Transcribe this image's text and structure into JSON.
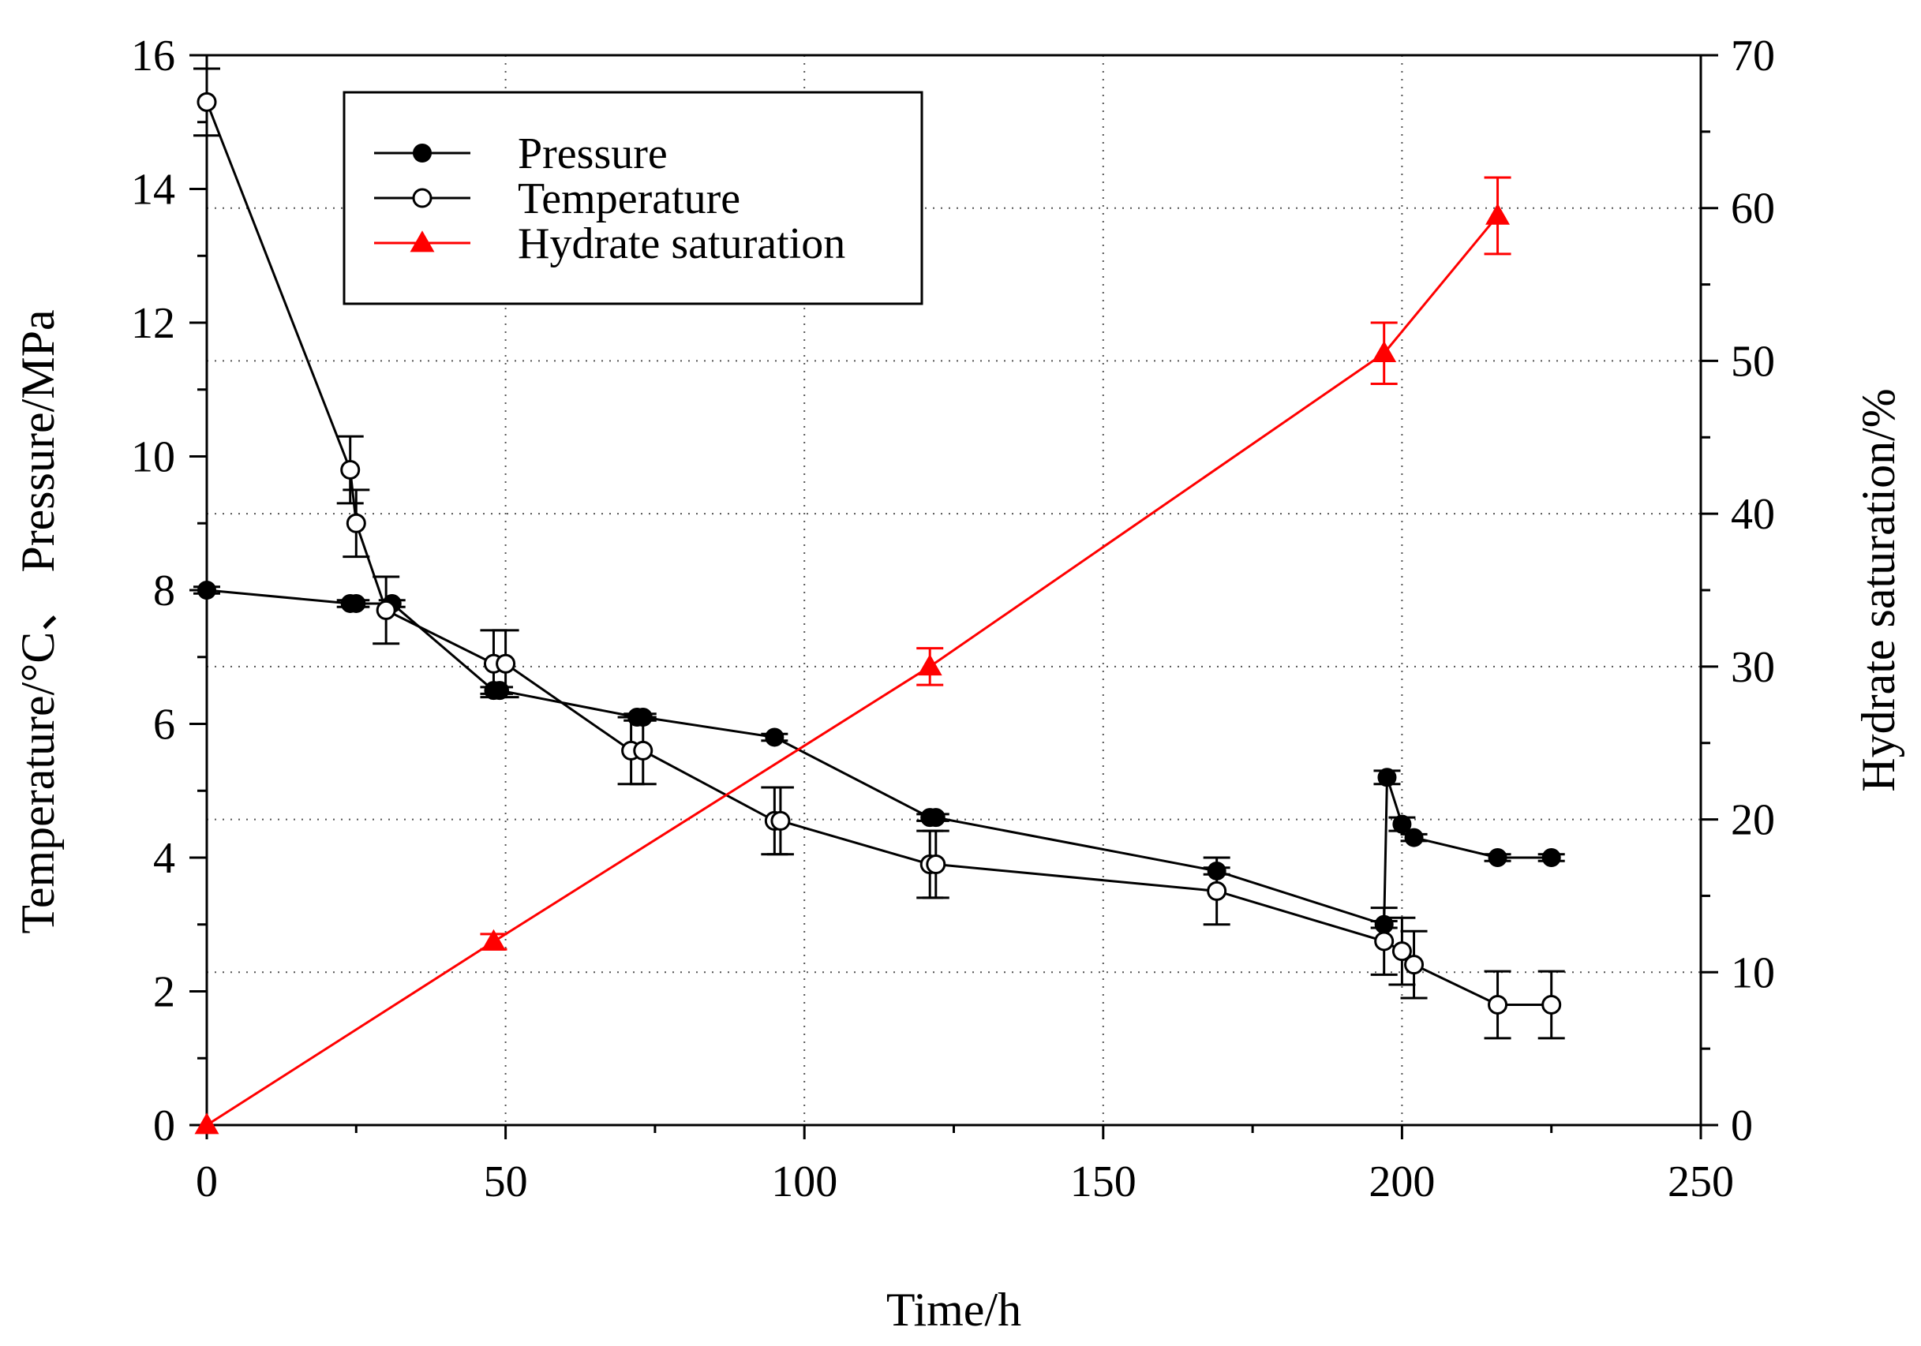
{
  "chart_data": {
    "type": "line",
    "title": "",
    "xlabel": "Time/h",
    "ylabel_left": "Temperature/°C、 Pressure/MPa",
    "ylabel_right": "Hydrate saturation/%",
    "xlim": [
      0,
      250
    ],
    "ylim_left": [
      0,
      16
    ],
    "ylim_right": [
      0,
      70
    ],
    "x_ticks": [
      0,
      50,
      100,
      150,
      200,
      250
    ],
    "y_left_ticks": [
      0,
      2,
      4,
      6,
      8,
      10,
      12,
      14,
      16
    ],
    "y_right_ticks": [
      0,
      10,
      20,
      30,
      40,
      50,
      60,
      70
    ],
    "grid": "dotted",
    "legend_position": "top-left",
    "series": [
      {
        "name": "Pressure",
        "axis": "left",
        "color": "#000000",
        "marker": "filled-circle",
        "x": [
          0,
          24,
          25,
          31,
          48,
          49,
          72,
          73,
          95,
          121,
          122,
          169,
          197,
          197.5,
          200,
          202,
          216,
          225
        ],
        "values": [
          8.0,
          7.8,
          7.8,
          7.8,
          6.5,
          6.5,
          6.1,
          6.1,
          5.8,
          4.6,
          4.6,
          3.8,
          3.0,
          5.2,
          4.5,
          4.3,
          4.0,
          4.0
        ],
        "errors": [
          0.05,
          0.05,
          0.05,
          0.05,
          0.05,
          0.05,
          0.05,
          0.05,
          0.05,
          0.05,
          0.05,
          0.05,
          0.05,
          0.1,
          0.1,
          0.05,
          0.05,
          0.05
        ]
      },
      {
        "name": "Temperature",
        "axis": "left",
        "color": "#000000",
        "marker": "open-circle",
        "x": [
          0,
          24,
          25,
          30,
          48,
          50,
          71,
          73,
          95,
          96,
          121,
          122,
          169,
          197,
          200,
          202,
          216,
          225
        ],
        "values": [
          15.3,
          9.8,
          9.0,
          7.7,
          6.9,
          6.9,
          5.6,
          5.6,
          4.55,
          4.55,
          3.9,
          3.9,
          3.5,
          2.75,
          2.6,
          2.4,
          1.8,
          1.8
        ],
        "errors": [
          0.5,
          0.5,
          0.5,
          0.5,
          0.5,
          0.5,
          0.5,
          0.5,
          0.5,
          0.5,
          0.5,
          0.5,
          0.5,
          0.5,
          0.5,
          0.5,
          0.5,
          0.5
        ]
      },
      {
        "name": "Hydrate saturation",
        "axis": "right",
        "color": "#ff0000",
        "marker": "filled-triangle",
        "x": [
          0,
          48,
          121,
          197,
          216
        ],
        "values": [
          0,
          12,
          30,
          50.5,
          59.5
        ],
        "errors": [
          0,
          0.5,
          1.2,
          2.0,
          2.5
        ]
      }
    ]
  }
}
